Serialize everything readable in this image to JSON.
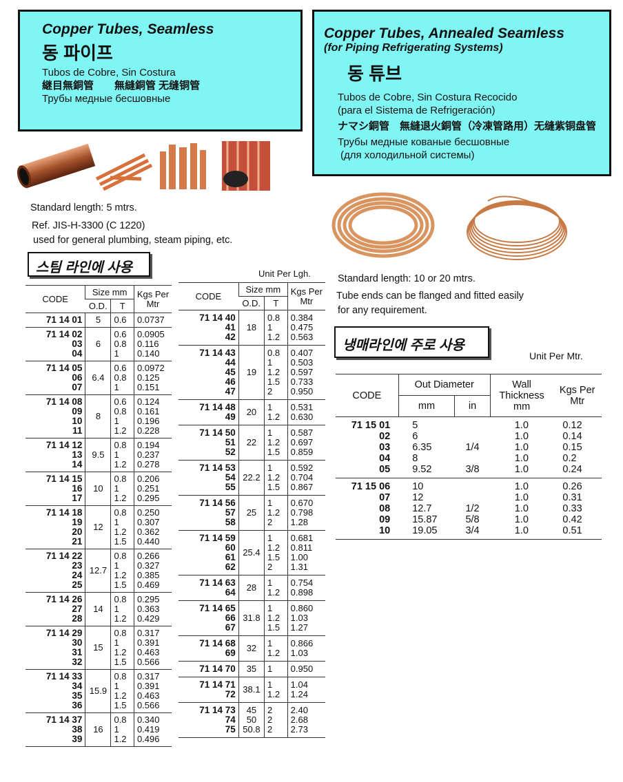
{
  "left_box": {
    "title": "Copper Tubes, Seamless",
    "korean": "동 파이프",
    "spanish": "Tubos de Cobre, Sin Costura",
    "chinese": "継目無銅管　　無縫銅管 无缝铜管",
    "russian": "Трубы медные бесшовные"
  },
  "right_box": {
    "title": "Copper Tubes, Annealed Seamless",
    "subtitle": "(for Piping Refrigerating Systems)",
    "korean": "동 튜브",
    "spanish": [
      "Tubos de Cobre, Sin Costura Recocido",
      "(para el Sistema de Refrigeración)"
    ],
    "chinese": "ナマシ銅管　無縫退火銅管（冷凍管路用）无缝紫铜盘管",
    "russian": [
      "Трубы медные кованые бесшовные",
      "(для холодильной системы)"
    ]
  },
  "left_notes": [
    "Standard length: 5 mtrs.",
    "Ref. JIS-H-3300 (C 1220)",
    "used  for general plumbing, steam piping, etc."
  ],
  "left_label": "스팀 라인에 사용",
  "left_unit": "Unit Per Lgh.",
  "right_notes": [
    "Standard length: 10 or 20 mtrs.",
    "Tube ends can be flanged  and fitted easily",
    "for any requirement."
  ],
  "right_label": "냉매라인에 주로 사용",
  "right_unit": "Unit Per Mtr.",
  "steam_tables": [
    {
      "headers": {
        "code": "CODE",
        "size": "Size mm",
        "od": "O.D.",
        "t": "T",
        "kgs": "Kgs Per Mtr"
      },
      "groups": [
        {
          "codes": [
            "71 14 01"
          ],
          "od": [
            "5"
          ],
          "t": [
            "0.6"
          ],
          "kgs": [
            "0.0737"
          ]
        },
        {
          "codes": [
            "71 14 02",
            "03",
            "04"
          ],
          "od": [
            "6"
          ],
          "t": [
            "0.6",
            "0.8",
            "1"
          ],
          "kgs": [
            "0.0905",
            "0.116",
            "0.140"
          ]
        },
        {
          "codes": [
            "71 14 05",
            "06",
            "07"
          ],
          "od": [
            "6.4"
          ],
          "t": [
            "0.6",
            "0.8",
            "1"
          ],
          "kgs": [
            "0.0972",
            "0.125",
            "0.151"
          ]
        },
        {
          "codes": [
            "71 14 08",
            "09",
            "10",
            "11"
          ],
          "od": [
            "8"
          ],
          "t": [
            "0.6",
            "0.8",
            "1",
            "1.2"
          ],
          "kgs": [
            "0.124",
            "0.161",
            "0.196",
            "0.228"
          ]
        },
        {
          "codes": [
            "71 14 12",
            "13",
            "14"
          ],
          "od": [
            "9.5"
          ],
          "t": [
            "0.8",
            "1",
            "1.2"
          ],
          "kgs": [
            "0.194",
            "0.237",
            "0.278"
          ]
        },
        {
          "codes": [
            "71 14 15",
            "16",
            "17"
          ],
          "od": [
            "10"
          ],
          "t": [
            "0.8",
            "1",
            "1.2"
          ],
          "kgs": [
            "0.206",
            "0.251",
            "0.295"
          ]
        },
        {
          "codes": [
            "71 14 18",
            "19",
            "20",
            "21"
          ],
          "od": [
            "12"
          ],
          "t": [
            "0.8",
            "1",
            "1.2",
            "1.5"
          ],
          "kgs": [
            "0.250",
            "0.307",
            "0.362",
            "0.440"
          ]
        },
        {
          "codes": [
            "71 14 22",
            "23",
            "24",
            "25"
          ],
          "od": [
            "12.7"
          ],
          "t": [
            "0.8",
            "1",
            "1.2",
            "1.5"
          ],
          "kgs": [
            "0.266",
            "0.327",
            "0.385",
            "0.469"
          ]
        },
        {
          "codes": [
            "71 14 26",
            "27",
            "28"
          ],
          "od": [
            "14"
          ],
          "t": [
            "0.8",
            "1",
            "1.2"
          ],
          "kgs": [
            "0.295",
            "0.363",
            "0.429"
          ]
        },
        {
          "codes": [
            "71 14 29",
            "30",
            "31",
            "32"
          ],
          "od": [
            "15"
          ],
          "t": [
            "0.8",
            "1",
            "1.2",
            "1.5"
          ],
          "kgs": [
            "0.317",
            "0.391",
            "0.463",
            "0.566"
          ]
        },
        {
          "codes": [
            "71 14 33",
            "34",
            "35",
            "36"
          ],
          "od": [
            "15.9"
          ],
          "t": [
            "0.8",
            "1",
            "1.2",
            "1.5"
          ],
          "kgs": [
            "0.317",
            "0.391",
            "0.463",
            "0.566"
          ]
        },
        {
          "codes": [
            "71 14 37",
            "38",
            "39"
          ],
          "od": [
            "16"
          ],
          "t": [
            "0.8",
            "1",
            "1.2"
          ],
          "kgs": [
            "0.340",
            "0.419",
            "0.496"
          ]
        }
      ]
    },
    {
      "headers": {
        "code": "CODE",
        "size": "Size mm",
        "od": "O.D.",
        "t": "T",
        "kgs": "Kgs Per Mtr"
      },
      "groups": [
        {
          "codes": [
            "71 14 40",
            "41",
            "42"
          ],
          "od": [
            "18"
          ],
          "t": [
            "0.8",
            "1",
            "1.2"
          ],
          "kgs": [
            "0.384",
            "0.475",
            "0.563"
          ]
        },
        {
          "codes": [
            "71 14 43",
            "44",
            "45",
            "46",
            "47"
          ],
          "od": [
            "19"
          ],
          "t": [
            "0.8",
            "1",
            "1.2",
            "1.5",
            "2"
          ],
          "kgs": [
            "0.407",
            "0.503",
            "0.597",
            "0.733",
            "0.950"
          ]
        },
        {
          "codes": [
            "71 14 48",
            "49"
          ],
          "od": [
            "20"
          ],
          "t": [
            "1",
            "1.2"
          ],
          "kgs": [
            "0.531",
            "0.630"
          ]
        },
        {
          "codes": [
            "71 14 50",
            "51",
            "52"
          ],
          "od": [
            "22"
          ],
          "t": [
            "1",
            "1.2",
            "1.5"
          ],
          "kgs": [
            "0.587",
            "0.697",
            "0.859"
          ]
        },
        {
          "codes": [
            "71 14 53",
            "54",
            "55"
          ],
          "od": [
            "22.2"
          ],
          "t": [
            "1",
            "1.2",
            "1.5"
          ],
          "kgs": [
            "0.592",
            "0.704",
            "0.867"
          ]
        },
        {
          "codes": [
            "71 14 56",
            "57",
            "58"
          ],
          "od": [
            "25"
          ],
          "t": [
            "1",
            "1.2",
            "2"
          ],
          "kgs": [
            "0.670",
            "0.798",
            "1.28"
          ]
        },
        {
          "codes": [
            "71 14 59",
            "60",
            "61",
            "62"
          ],
          "od": [
            "25.4"
          ],
          "t": [
            "1",
            "1.2",
            "1.5",
            "2"
          ],
          "kgs": [
            "0.681",
            "0.811",
            "1.00",
            "1.31"
          ]
        },
        {
          "codes": [
            "71 14 63",
            "64"
          ],
          "od": [
            "28"
          ],
          "t": [
            "1",
            "1.2"
          ],
          "kgs": [
            "0.754",
            "0.898"
          ]
        },
        {
          "codes": [
            "71 14 65",
            "66",
            "67"
          ],
          "od": [
            "31.8"
          ],
          "t": [
            "1",
            "1.2",
            "1.5"
          ],
          "kgs": [
            "0.860",
            "1.03",
            "1.27"
          ]
        },
        {
          "codes": [
            "71 14 68",
            "69"
          ],
          "od": [
            "32"
          ],
          "t": [
            "1",
            "1.2"
          ],
          "kgs": [
            "0.866",
            "1.03"
          ]
        },
        {
          "codes": [
            "71 14 70"
          ],
          "od": [
            "35"
          ],
          "t": [
            "1"
          ],
          "kgs": [
            "0.950"
          ]
        },
        {
          "codes": [
            "71 14 71",
            "72"
          ],
          "od": [
            "38.1"
          ],
          "t": [
            "1",
            "1.2"
          ],
          "kgs": [
            "1.04",
            "1.24"
          ]
        },
        {
          "codes": [
            "71 14 73",
            "74",
            "75"
          ],
          "od": [
            "45",
            "50",
            "50.8"
          ],
          "t": [
            "2",
            "2",
            "2"
          ],
          "kgs": [
            "2.40",
            "2.68",
            "2.73"
          ]
        }
      ]
    }
  ],
  "refrig_table": {
    "headers": {
      "code": "CODE",
      "out_diameter": "Out Diameter",
      "mm": "mm",
      "in": "in",
      "wall": "Wall Thickness mm",
      "kgs": "Kgs Per Mtr"
    },
    "groups": [
      {
        "codes": [
          "71 15 01",
          "02",
          "03",
          "04",
          "05"
        ],
        "mm": [
          "5",
          "6",
          "6.35",
          "8",
          "9.52"
        ],
        "in": [
          null,
          null,
          "1/4",
          null,
          "3/8"
        ],
        "wall": [
          "1.0",
          "1.0",
          "1.0",
          "1.0",
          "1.0"
        ],
        "kgs": [
          "0.12",
          "0.14",
          "0.15",
          "0.2",
          "0.24"
        ]
      },
      {
        "codes": [
          "71 15 06",
          "07",
          "08",
          "09",
          "10"
        ],
        "mm": [
          "10",
          "12",
          "12.7",
          "15.87",
          "19.05"
        ],
        "in": [
          null,
          null,
          "1/2",
          "5/8",
          "3/4"
        ],
        "wall": [
          "1.0",
          "1.0",
          "1.0",
          "1.0",
          "1.0"
        ],
        "kgs": [
          "0.26",
          "0.31",
          "0.33",
          "0.42",
          "0.51"
        ]
      }
    ]
  }
}
